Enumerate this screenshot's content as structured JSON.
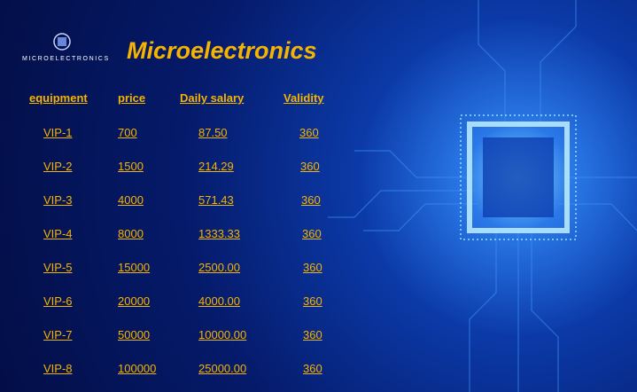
{
  "header": {
    "logo_text": "MICROELECTRONICS",
    "title": "Microelectronics"
  },
  "table": {
    "columns": [
      "equipment",
      "price",
      "Daily salary",
      "Validity"
    ],
    "rows": [
      [
        "VIP-1",
        "700",
        "87.50",
        "360"
      ],
      [
        "VIP-2",
        "1500",
        "214.29",
        "360"
      ],
      [
        "VIP-3",
        "4000",
        "571.43",
        "360"
      ],
      [
        "VIP-4",
        "8000",
        "1333.33",
        "360"
      ],
      [
        "VIP-5",
        "15000",
        "2500.00",
        "360"
      ],
      [
        "VIP-6",
        "20000",
        "4000.00",
        "360"
      ],
      [
        "VIP-7",
        "50000",
        "10000.00",
        "360"
      ],
      [
        "VIP-8",
        "100000",
        "25000.00",
        "360"
      ]
    ]
  }
}
